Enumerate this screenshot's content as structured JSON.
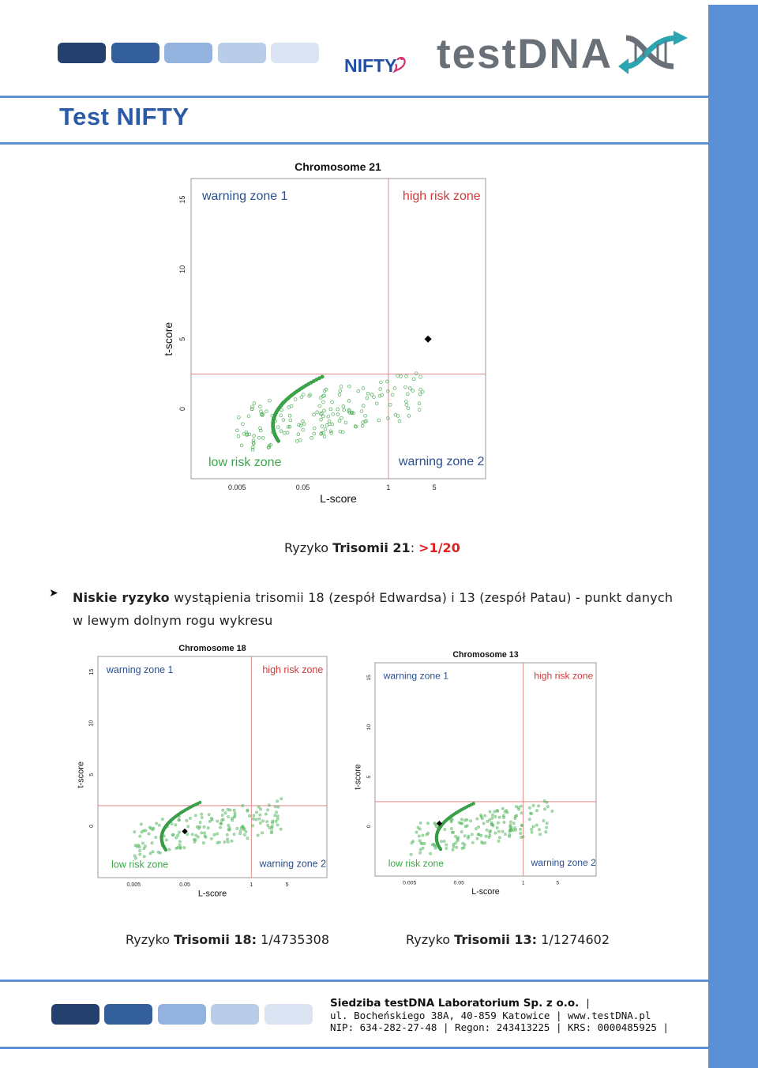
{
  "document": {
    "title": "Test NIFTY",
    "logos": {
      "nifty": "NIFTY",
      "testdna": "testDNA"
    },
    "colors": {
      "accent": "#5b8fd6",
      "title": "#2b5aa6",
      "warning": "#2b4f8f",
      "high_risk": "#d23a3a",
      "low_risk": "#3aa84a",
      "risk_value": "#e02020"
    },
    "chr21_risk": {
      "prefix": "Ryzyko ",
      "label": "Trisomii 21",
      "sep": ": ",
      "value": ">1/20"
    },
    "bullet": {
      "bold": "Niskie ryzyko",
      "text": " wystąpienia trisomii 18 (zespół Edwardsa) i 13 (zespół Patau) - punkt danych w lewym dolnym rogu wykresu"
    },
    "chr18_risk": {
      "prefix": "Ryzyko ",
      "label": "Trisomii 18:",
      "value": " 1/4735308"
    },
    "chr13_risk": {
      "prefix": "Ryzyko ",
      "label": "Trisomii 13:",
      "value": " 1/1274602"
    },
    "footer": {
      "line1": "Siedziba testDNA Laboratorium Sp. z o.o.",
      "line1_sep": " |",
      "line2": "ul. Bocheńskiego 38A, 40-859 Katowice | www.testDNA.pl",
      "line3": "NIP: 634-282-27-48 | Regon: 243413225 | KRS: 0000485925 |"
    }
  },
  "chart_data": [
    {
      "type": "scatter",
      "title": "Chromosome 21",
      "xlabel": "L-score",
      "ylabel": "t-score",
      "x_scale": "log",
      "x_ticks": [
        "0.005",
        "0.05",
        "1",
        "5"
      ],
      "y_ticks": [
        "0",
        "5",
        "10",
        "15"
      ],
      "zones": {
        "top_left": "warning zone 1",
        "top_right": "high risk zone",
        "bottom_left": "low risk zone",
        "bottom_right": "warning zone 2"
      },
      "thresholds": {
        "x": 1,
        "y": 2.5
      },
      "sample": {
        "x": 4,
        "y": 5
      }
    },
    {
      "type": "scatter",
      "title": "Chromosome 18",
      "xlabel": "L-score",
      "ylabel": "t-score",
      "x_scale": "log",
      "x_ticks": [
        "0.005",
        "0.05",
        "1",
        "5"
      ],
      "y_ticks": [
        "0",
        "5",
        "10",
        "15"
      ],
      "zones": {
        "top_left": "warning zone 1",
        "top_right": "high risk zone",
        "bottom_left": "low risk zone",
        "bottom_right": "warning zone 2"
      },
      "thresholds": {
        "x": 1,
        "y": 2
      },
      "sample": {
        "x": 0.05,
        "y": -0.5
      }
    },
    {
      "type": "scatter",
      "title": "Chromosome 13",
      "xlabel": "L-score",
      "ylabel": "t-score",
      "x_scale": "log",
      "x_ticks": [
        "0.005",
        "0.05",
        "1",
        "5"
      ],
      "y_ticks": [
        "0",
        "5",
        "10",
        "15"
      ],
      "zones": {
        "top_left": "warning zone 1",
        "top_right": "high risk zone",
        "bottom_left": "low risk zone",
        "bottom_right": "warning zone 2"
      },
      "thresholds": {
        "x": 1,
        "y": 2.5
      },
      "sample": {
        "x": 0.02,
        "y": 0.3
      }
    }
  ]
}
